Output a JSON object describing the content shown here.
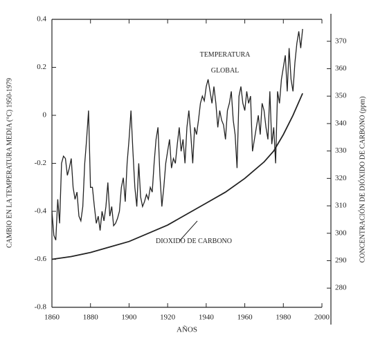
{
  "chart_data": {
    "type": "line",
    "x_label": "AÑOS",
    "y_label": "CAMBIO EN LA TEMPERATURA MEDIA (°C) 1950-1979",
    "y2_label": "CONCENTRACIÓN DE DIÓXIDO DE CARBONO (ppm)",
    "xlim": [
      1860,
      2000
    ],
    "xticks": [
      1860,
      1880,
      1900,
      1920,
      1940,
      1960,
      1980,
      2000
    ],
    "ylim": [
      -0.8,
      0.4
    ],
    "yticks": [
      -0.8,
      -0.6,
      -0.4,
      -0.2,
      0,
      0.2,
      0.4
    ],
    "y2lim": [
      273,
      378
    ],
    "y2ticks": [
      280,
      290,
      300,
      310,
      320,
      330,
      340,
      350,
      360,
      370
    ],
    "series": [
      {
        "name": "TEMPERATURA GLOBAL",
        "color": "#222222",
        "x": [
          1860,
          1861,
          1862,
          1863,
          1864,
          1865,
          1866,
          1867,
          1868,
          1869,
          1870,
          1871,
          1872,
          1873,
          1874,
          1875,
          1876,
          1877,
          1878,
          1879,
          1880,
          1881,
          1882,
          1883,
          1884,
          1885,
          1886,
          1887,
          1888,
          1889,
          1890,
          1891,
          1892,
          1893,
          1894,
          1895,
          1896,
          1897,
          1898,
          1899,
          1900,
          1901,
          1902,
          1903,
          1904,
          1905,
          1906,
          1907,
          1908,
          1909,
          1910,
          1911,
          1912,
          1913,
          1914,
          1915,
          1916,
          1917,
          1918,
          1919,
          1920,
          1921,
          1922,
          1923,
          1924,
          1925,
          1926,
          1927,
          1928,
          1929,
          1930,
          1931,
          1932,
          1933,
          1934,
          1935,
          1936,
          1937,
          1938,
          1939,
          1940,
          1941,
          1942,
          1943,
          1944,
          1945,
          1946,
          1947,
          1948,
          1949,
          1950,
          1951,
          1952,
          1953,
          1954,
          1955,
          1956,
          1957,
          1958,
          1959,
          1960,
          1961,
          1962,
          1963,
          1964,
          1965,
          1966,
          1967,
          1968,
          1969,
          1970,
          1971,
          1972,
          1973,
          1974,
          1975,
          1976,
          1977,
          1978,
          1979,
          1980,
          1981,
          1982,
          1983,
          1984,
          1985,
          1986,
          1987,
          1988,
          1989,
          1990
        ],
        "values": [
          -0.4,
          -0.5,
          -0.52,
          -0.35,
          -0.45,
          -0.2,
          -0.17,
          -0.18,
          -0.25,
          -0.22,
          -0.18,
          -0.3,
          -0.35,
          -0.32,
          -0.42,
          -0.44,
          -0.38,
          -0.2,
          -0.1,
          0.02,
          -0.3,
          -0.3,
          -0.38,
          -0.45,
          -0.42,
          -0.48,
          -0.4,
          -0.44,
          -0.38,
          -0.28,
          -0.42,
          -0.38,
          -0.46,
          -0.45,
          -0.43,
          -0.4,
          -0.3,
          -0.26,
          -0.36,
          -0.2,
          -0.1,
          0.02,
          -0.15,
          -0.3,
          -0.38,
          -0.2,
          -0.34,
          -0.38,
          -0.36,
          -0.33,
          -0.35,
          -0.3,
          -0.32,
          -0.2,
          -0.1,
          -0.05,
          -0.25,
          -0.38,
          -0.3,
          -0.2,
          -0.15,
          -0.1,
          -0.22,
          -0.18,
          -0.2,
          -0.12,
          -0.05,
          -0.15,
          -0.1,
          -0.2,
          -0.05,
          0.02,
          -0.08,
          -0.2,
          -0.05,
          -0.08,
          -0.02,
          0.05,
          0.08,
          0.06,
          0.12,
          0.15,
          0.1,
          0.05,
          0.12,
          0.05,
          -0.05,
          0.02,
          -0.02,
          -0.04,
          -0.1,
          0.02,
          0.05,
          0.1,
          -0.02,
          -0.08,
          -0.22,
          0.08,
          0.12,
          0.05,
          0.02,
          0.1,
          0.05,
          0.08,
          -0.15,
          -0.1,
          -0.05,
          0,
          -0.08,
          0.05,
          0.02,
          -0.05,
          -0.1,
          0.1,
          -0.12,
          -0.05,
          -0.2,
          0.1,
          0.05,
          0.15,
          0.2,
          0.25,
          0.1,
          0.28,
          0.15,
          0.1,
          0.22,
          0.3,
          0.35,
          0.28,
          0.36
        ]
      },
      {
        "name": "DIOXIDO DE CARBONO",
        "color": "#222222",
        "axis": "y2",
        "x": [
          1860,
          1870,
          1880,
          1890,
          1900,
          1910,
          1920,
          1930,
          1940,
          1950,
          1960,
          1970,
          1975,
          1980,
          1985,
          1990
        ],
        "values": [
          290.5,
          291.5,
          293,
          295,
          297,
          300,
          303,
          307,
          311,
          315,
          320,
          326,
          330,
          336,
          343,
          351
        ]
      }
    ]
  }
}
